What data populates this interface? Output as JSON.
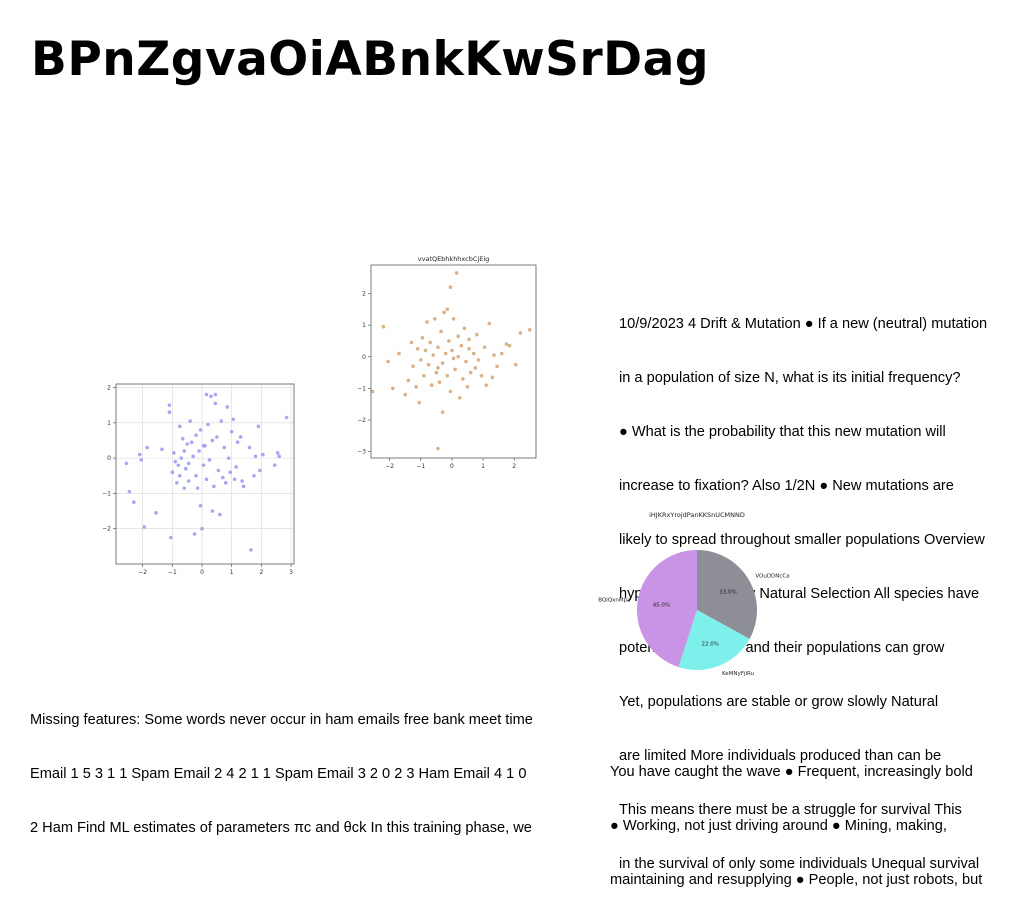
{
  "slide": {
    "title": "BPnZgvaOiABnkKwSrDag",
    "right_text": [
      "10/9/2023 4 Drift & Mutation ● If a new (neutral) mutation",
      "in a population of size N, what is its initial frequency?",
      "● What is the probability that this new mutation will",
      "increase to fixation? Also 1/2N ● New mutations are",
      "likely to spread throughout smaller populations Overview",
      "hypothesis: Origin by Natural Selection All species have",
      "potential for fertility and their populations can grow",
      "Yet, populations are stable or grow slowly Natural",
      "are limited More individuals produced than can be",
      "This means there must be a struggle for survival This",
      "in the survival of only some individuals Unequal survival"
    ],
    "bottom_left_text": [
      "Missing features: Some words never occur in ham emails free bank meet time",
      "Email 1 5 3 1 1 Spam Email 2 4 2 1 1 Spam Email 3 2 0 2 3 Ham Email 4 1 0",
      "2 Ham Find ML estimates of parameters πc and θck In this training phase, we"
    ],
    "bottom_right_text": [
      "You have caught the wave ● Frequent, increasingly bold",
      "● Working, not just driving around ● Mining, making,",
      "maintaining and resupplying ● People, not just robots, but"
    ]
  },
  "chart_data": [
    {
      "type": "scatter",
      "title": "",
      "color": "#9999ee",
      "xlim": [
        -2.9,
        3.1
      ],
      "ylim": [
        -3.0,
        2.1
      ],
      "xticks": [
        "−2",
        "−1",
        "0",
        "1",
        "2",
        "3"
      ],
      "yticks": [
        "−2",
        "−1",
        "0",
        "1",
        "2"
      ],
      "grid": true,
      "points": [
        [
          -2.55,
          -0.15
        ],
        [
          -2.45,
          -0.95
        ],
        [
          -2.3,
          -1.25
        ],
        [
          -2.1,
          0.1
        ],
        [
          -2.05,
          -0.05
        ],
        [
          -1.95,
          -1.95
        ],
        [
          -1.85,
          0.3
        ],
        [
          -1.55,
          -1.55
        ],
        [
          -1.35,
          0.25
        ],
        [
          -1.1,
          1.5
        ],
        [
          -1.1,
          1.3
        ],
        [
          -1.05,
          -2.25
        ],
        [
          -1.0,
          -0.4
        ],
        [
          -0.95,
          0.15
        ],
        [
          -0.9,
          -0.1
        ],
        [
          -0.85,
          -0.7
        ],
        [
          -0.8,
          -0.2
        ],
        [
          -0.75,
          0.9
        ],
        [
          -0.75,
          -0.5
        ],
        [
          -0.7,
          0.0
        ],
        [
          -0.65,
          0.55
        ],
        [
          -0.6,
          -0.85
        ],
        [
          -0.6,
          0.2
        ],
        [
          -0.55,
          -0.3
        ],
        [
          -0.5,
          0.4
        ],
        [
          -0.45,
          -0.15
        ],
        [
          -0.45,
          -0.65
        ],
        [
          -0.4,
          1.05
        ],
        [
          -0.35,
          0.45
        ],
        [
          -0.3,
          0.05
        ],
        [
          -0.25,
          -2.15
        ],
        [
          -0.2,
          -0.5
        ],
        [
          -0.15,
          -0.85
        ],
        [
          -0.1,
          0.2
        ],
        [
          -0.05,
          0.8
        ],
        [
          -0.05,
          -1.35
        ],
        [
          0.0,
          -2.0
        ],
        [
          0.05,
          -0.2
        ],
        [
          0.1,
          0.35
        ],
        [
          0.15,
          1.8
        ],
        [
          0.15,
          -0.6
        ],
        [
          0.2,
          0.95
        ],
        [
          0.25,
          -0.05
        ],
        [
          0.3,
          1.75
        ],
        [
          0.35,
          0.5
        ],
        [
          0.35,
          -1.5
        ],
        [
          0.4,
          -0.8
        ],
        [
          0.45,
          1.55
        ],
        [
          0.45,
          1.8
        ],
        [
          0.5,
          0.6
        ],
        [
          0.55,
          -0.35
        ],
        [
          0.6,
          -1.6
        ],
        [
          0.65,
          1.05
        ],
        [
          0.7,
          -0.55
        ],
        [
          0.75,
          0.3
        ],
        [
          0.8,
          -0.7
        ],
        [
          0.85,
          1.45
        ],
        [
          0.9,
          0.0
        ],
        [
          0.95,
          -0.4
        ],
        [
          1.0,
          0.75
        ],
        [
          1.05,
          1.1
        ],
        [
          1.1,
          -0.6
        ],
        [
          1.15,
          -0.25
        ],
        [
          1.2,
          0.45
        ],
        [
          1.3,
          0.6
        ],
        [
          1.35,
          -0.65
        ],
        [
          1.4,
          -0.8
        ],
        [
          1.6,
          0.3
        ],
        [
          1.65,
          -2.6
        ],
        [
          1.75,
          -0.5
        ],
        [
          1.8,
          0.05
        ],
        [
          1.9,
          0.9
        ],
        [
          1.95,
          -0.35
        ],
        [
          2.05,
          0.1
        ],
        [
          2.55,
          0.15
        ],
        [
          2.6,
          0.05
        ],
        [
          2.85,
          1.15
        ],
        [
          2.45,
          -0.2
        ],
        [
          -0.2,
          0.65
        ],
        [
          0.05,
          0.35
        ]
      ]
    },
    {
      "type": "scatter",
      "title": "vvatQEbhkhhxcbCjEig",
      "color": "#d4a373",
      "xlim": [
        -2.6,
        2.7
      ],
      "ylim": [
        -3.2,
        2.9
      ],
      "xticks": [
        "−2",
        "−1",
        "0",
        "1",
        "2"
      ],
      "yticks": [
        "−3",
        "−2",
        "−1",
        "0",
        "1",
        "2"
      ],
      "grid": false,
      "points": [
        [
          -2.55,
          -1.1
        ],
        [
          -2.2,
          0.95
        ],
        [
          -2.05,
          -0.15
        ],
        [
          -1.9,
          -1.0
        ],
        [
          -1.7,
          0.1
        ],
        [
          -1.5,
          -1.2
        ],
        [
          -1.4,
          -0.75
        ],
        [
          -1.3,
          0.45
        ],
        [
          -1.25,
          -0.3
        ],
        [
          -1.15,
          -0.95
        ],
        [
          -1.1,
          0.25
        ],
        [
          -1.0,
          -0.1
        ],
        [
          -0.95,
          0.6
        ],
        [
          -0.9,
          -0.6
        ],
        [
          -0.85,
          0.2
        ],
        [
          -0.8,
          1.1
        ],
        [
          -0.75,
          -0.25
        ],
        [
          -0.7,
          0.45
        ],
        [
          -0.65,
          -0.9
        ],
        [
          -0.6,
          0.05
        ],
        [
          -0.55,
          1.2
        ],
        [
          -0.5,
          -0.5
        ],
        [
          -0.45,
          0.3
        ],
        [
          -0.45,
          -2.9
        ],
        [
          -0.4,
          -0.8
        ],
        [
          -0.35,
          0.8
        ],
        [
          -0.3,
          -0.2
        ],
        [
          -0.3,
          -1.75
        ],
        [
          -0.25,
          1.4
        ],
        [
          -0.2,
          0.1
        ],
        [
          -0.15,
          -0.6
        ],
        [
          -0.1,
          0.5
        ],
        [
          -0.05,
          -1.1
        ],
        [
          0.0,
          0.2
        ],
        [
          0.05,
          1.2
        ],
        [
          0.1,
          -0.4
        ],
        [
          0.15,
          2.65
        ],
        [
          0.2,
          0.0
        ],
        [
          0.25,
          -1.3
        ],
        [
          0.3,
          0.35
        ],
        [
          0.35,
          -0.7
        ],
        [
          0.4,
          0.9
        ],
        [
          0.45,
          -0.15
        ],
        [
          0.5,
          -0.95
        ],
        [
          0.55,
          0.55
        ],
        [
          0.6,
          -0.5
        ],
        [
          0.7,
          0.1
        ],
        [
          0.75,
          -0.35
        ],
        [
          0.8,
          0.7
        ],
        [
          0.85,
          -0.1
        ],
        [
          0.95,
          -0.6
        ],
        [
          1.05,
          0.3
        ],
        [
          1.1,
          -0.9
        ],
        [
          1.2,
          1.05
        ],
        [
          1.3,
          -0.65
        ],
        [
          1.35,
          0.05
        ],
        [
          1.45,
          -0.3
        ],
        [
          1.6,
          0.1
        ],
        [
          1.75,
          0.4
        ],
        [
          1.85,
          0.35
        ],
        [
          2.05,
          -0.25
        ],
        [
          2.2,
          0.75
        ],
        [
          2.5,
          0.85
        ],
        [
          -0.15,
          1.5
        ],
        [
          -0.05,
          2.2
        ],
        [
          0.2,
          0.65
        ],
        [
          -1.05,
          -1.45
        ],
        [
          0.05,
          -0.05
        ],
        [
          -0.45,
          -0.35
        ],
        [
          0.55,
          0.25
        ]
      ]
    },
    {
      "type": "pie",
      "title": "iHJKRxYrojdPanKKSnUCMNND",
      "slices": [
        {
          "label": "VOuDDNcCa",
          "value": 33.0,
          "color": "#8e8e96"
        },
        {
          "label": "KeMNyFjiRu",
          "value": 22.0,
          "color": "#7ef0ec"
        },
        {
          "label": "BQiQxnMpz",
          "value": 45.0,
          "color": "#c994e6"
        }
      ]
    }
  ]
}
